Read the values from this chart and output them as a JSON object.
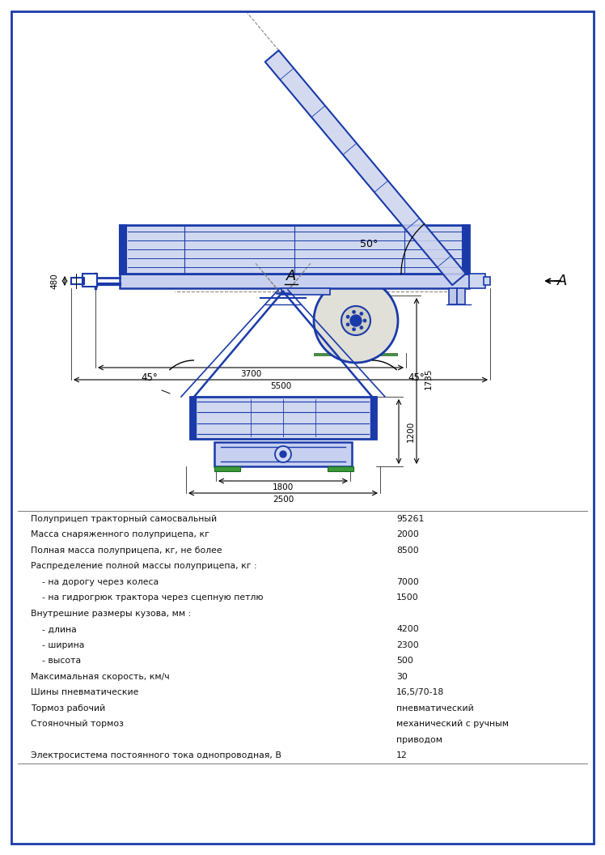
{
  "bg_color": "#ffffff",
  "border_color": "#1a3aaa",
  "dc": "#1a3aaa",
  "lc": "#000000",
  "gc": "#888888",
  "spec_rows": [
    {
      "label": "Полуприцеп тракторный самосвальный",
      "value": "95261",
      "indent": 0
    },
    {
      "label": "Масса снаряженного полуприцепа, кг",
      "value": "2000",
      "indent": 0
    },
    {
      "label": "Полная масса полуприцепа, кг, не более",
      "value": "8500",
      "indent": 0
    },
    {
      "label": "Распределение полной массы полуприцепа, кг :",
      "value": "",
      "indent": 0
    },
    {
      "label": "- на дорогу через колеса",
      "value": "7000",
      "indent": 1
    },
    {
      "label": "- на гидрогрюк трактора через сцепную петлю",
      "value": "1500",
      "indent": 1
    },
    {
      "label": "Внутрешние размеры кузова, мм :",
      "value": "",
      "indent": 0
    },
    {
      "label": "- длина",
      "value": "4200",
      "indent": 1
    },
    {
      "label": "- ширина",
      "value": "2300",
      "indent": 1
    },
    {
      "label": "- высота",
      "value": "500",
      "indent": 1
    },
    {
      "label": "Максимальная скорость, км/ч",
      "value": "30",
      "indent": 0
    },
    {
      "label": "Шины пневматические",
      "value": "16,5/70-18",
      "indent": 0
    },
    {
      "label": "Тормоз рабочий",
      "value": "пневматический",
      "indent": 0
    },
    {
      "label": "Стояночный тормоз",
      "value": "механический с ручным",
      "indent": 0
    },
    {
      "label": "",
      "value": "приводом",
      "indent": 0
    },
    {
      "label": "Электросистема постоянного тока однопроводная, В",
      "value": "12",
      "indent": 0
    }
  ]
}
